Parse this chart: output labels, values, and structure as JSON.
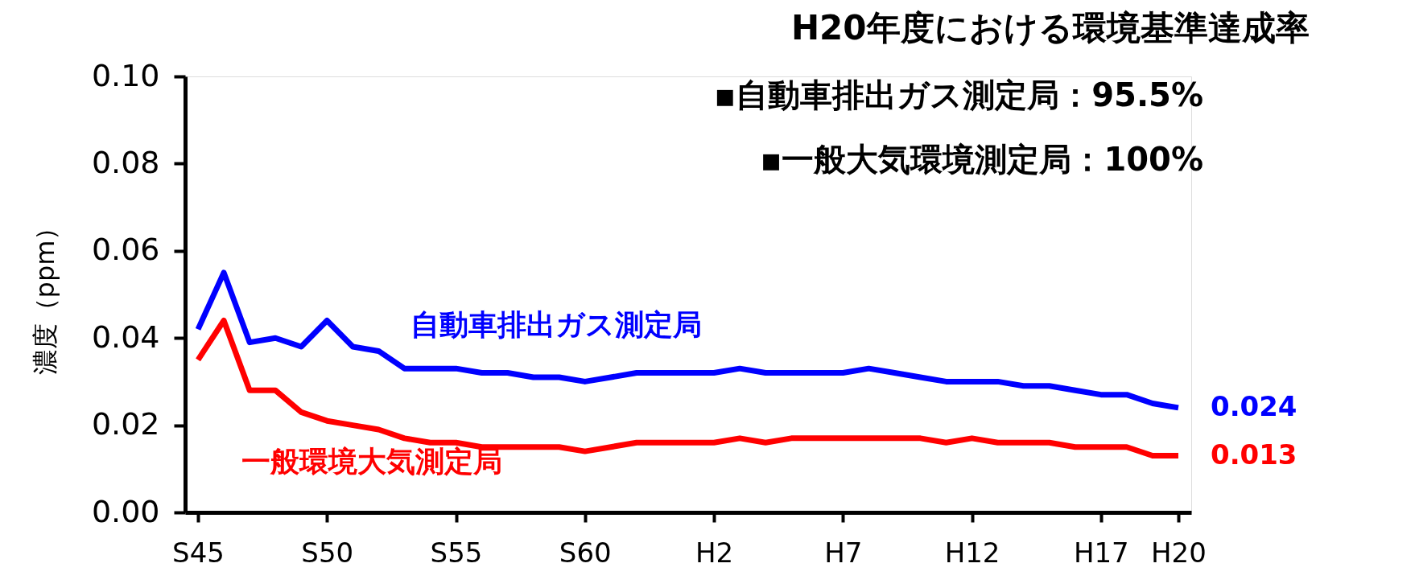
{
  "chart_data": {
    "type": "line",
    "title": "H20年度における環境基準達成率",
    "annotations": [
      "▪自動車排出ガス測定局：95.5%",
      "▪一般大気環境測定局：100%"
    ],
    "ylabel": "濃度（ppm）",
    "categories": [
      "S45",
      null,
      null,
      null,
      null,
      "S50",
      null,
      null,
      null,
      null,
      "S55",
      null,
      null,
      null,
      null,
      "S60",
      null,
      null,
      null,
      null,
      "H2",
      null,
      null,
      null,
      null,
      "H7",
      null,
      null,
      null,
      null,
      "H12",
      null,
      null,
      null,
      null,
      "H17",
      null,
      null,
      "H20"
    ],
    "series": [
      {
        "name": "自動車排出ガス測定局",
        "color": "#0000ff",
        "values": [
          0.042,
          0.055,
          0.039,
          0.04,
          0.038,
          0.044,
          0.038,
          0.037,
          0.033,
          0.033,
          0.033,
          0.032,
          0.032,
          0.031,
          0.031,
          0.03,
          0.031,
          0.032,
          0.032,
          0.032,
          0.032,
          0.033,
          0.032,
          0.032,
          0.032,
          0.032,
          0.033,
          0.032,
          0.031,
          0.03,
          0.03,
          0.03,
          0.029,
          0.029,
          0.028,
          0.027,
          0.027,
          0.025,
          0.024
        ],
        "value_labels": [
          null,
          null,
          null,
          null,
          null,
          null,
          null,
          null,
          null,
          null,
          null,
          null,
          null,
          null,
          null,
          null,
          null,
          null,
          null,
          null,
          null,
          null,
          null,
          null,
          null,
          null,
          null,
          null,
          null,
          null,
          null,
          null,
          null,
          null,
          null,
          null,
          null,
          null,
          "0.024"
        ]
      },
      {
        "name": "一般環境大気測定局",
        "color": "#ff0000",
        "values": [
          0.035,
          0.044,
          0.028,
          0.028,
          0.023,
          0.021,
          0.02,
          0.019,
          0.017,
          0.016,
          0.016,
          0.015,
          0.015,
          0.015,
          0.015,
          0.014,
          0.015,
          0.016,
          0.016,
          0.016,
          0.016,
          0.017,
          0.016,
          0.017,
          0.017,
          0.017,
          0.017,
          0.017,
          0.017,
          0.016,
          0.017,
          0.016,
          0.016,
          0.016,
          0.015,
          0.015,
          0.015,
          0.013,
          0.013
        ],
        "value_labels": [
          null,
          null,
          null,
          null,
          null,
          null,
          null,
          null,
          null,
          null,
          null,
          null,
          null,
          null,
          null,
          null,
          null,
          null,
          null,
          null,
          null,
          null,
          null,
          null,
          null,
          null,
          null,
          null,
          null,
          null,
          null,
          null,
          null,
          null,
          null,
          null,
          null,
          null,
          "0.013"
        ]
      }
    ],
    "ylim": [
      0,
      0.1
    ],
    "yticks": [
      {
        "value": 0,
        "label": "0.00"
      },
      {
        "value": 0.02,
        "label": "0.02"
      },
      {
        "value": 0.04,
        "label": "0.04"
      },
      {
        "value": 0.06,
        "label": "0.06"
      },
      {
        "value": 0.08,
        "label": "0.08"
      },
      {
        "value": 0.1,
        "label": "0.10"
      }
    ],
    "marker": "none",
    "line_style": "solid"
  }
}
